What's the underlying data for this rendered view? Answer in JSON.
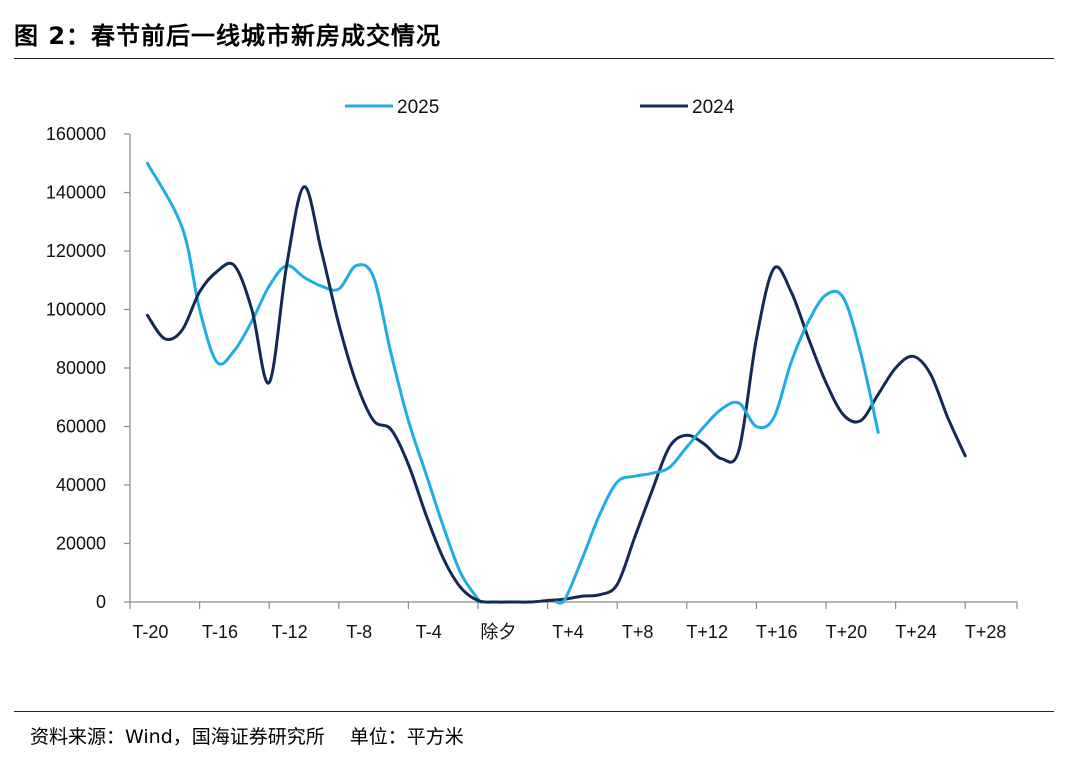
{
  "figure_title": "图 2：春节前后一线城市新房成交情况",
  "source_note": "资料来源：Wind，国海证券研究所　 单位：平方米",
  "chart_data": {
    "type": "line",
    "title": "",
    "xlabel": "",
    "ylabel": "",
    "ylim": [
      0,
      160000
    ],
    "yticks": [
      0,
      20000,
      40000,
      60000,
      80000,
      100000,
      120000,
      140000,
      160000
    ],
    "xlim": [
      -20,
      31
    ],
    "xticks": [
      {
        "x": -20,
        "label": "T-20"
      },
      {
        "x": -16,
        "label": "T-16"
      },
      {
        "x": -12,
        "label": "T-12"
      },
      {
        "x": -8,
        "label": "T-8"
      },
      {
        "x": -4,
        "label": "T-4"
      },
      {
        "x": 0,
        "label": "除夕"
      },
      {
        "x": 4,
        "label": "T+4"
      },
      {
        "x": 8,
        "label": "T+8"
      },
      {
        "x": 12,
        "label": "T+12"
      },
      {
        "x": 16,
        "label": "T+16"
      },
      {
        "x": 20,
        "label": "T+20"
      },
      {
        "x": 24,
        "label": "T+24"
      },
      {
        "x": 28,
        "label": "T+28"
      }
    ],
    "grid": false,
    "legend_position": "top",
    "series": [
      {
        "name": "2025",
        "color": "#1FADE4",
        "points": [
          [
            -20,
            150000
          ],
          [
            -18,
            128000
          ],
          [
            -17,
            100000
          ],
          [
            -16,
            82000
          ],
          [
            -15,
            86000
          ],
          [
            -14,
            96000
          ],
          [
            -13,
            108000
          ],
          [
            -12,
            115000
          ],
          [
            -11,
            111000
          ],
          [
            -10,
            108000
          ],
          [
            -9,
            107000
          ],
          [
            -8,
            115000
          ],
          [
            -7,
            111000
          ],
          [
            -6,
            85000
          ],
          [
            -5,
            62000
          ],
          [
            -4,
            44000
          ],
          [
            -3,
            26000
          ],
          [
            -2,
            10000
          ],
          [
            -1,
            1000
          ],
          [
            -0.8,
            0
          ]
        ]
      },
      {
        "name": "2024",
        "color": "#132A57",
        "points": [
          [
            -20,
            98000
          ],
          [
            -19,
            90000
          ],
          [
            -18,
            93000
          ],
          [
            -17,
            106000
          ],
          [
            -16,
            113000
          ],
          [
            -15,
            115000
          ],
          [
            -14,
            100000
          ],
          [
            -13,
            75000
          ],
          [
            -12,
            115000
          ],
          [
            -11,
            142000
          ],
          [
            -10,
            120000
          ],
          [
            -9,
            95000
          ],
          [
            -8,
            75000
          ],
          [
            -7,
            62000
          ],
          [
            -6,
            59000
          ],
          [
            -5,
            47000
          ],
          [
            -4,
            30000
          ],
          [
            -3,
            15000
          ],
          [
            -2,
            5000
          ],
          [
            -1,
            500
          ],
          [
            0,
            0
          ],
          [
            1,
            0
          ],
          [
            2,
            0
          ],
          [
            3,
            500
          ],
          [
            4,
            1000
          ],
          [
            5,
            2000
          ],
          [
            6,
            2500
          ],
          [
            7,
            6000
          ],
          [
            8,
            22000
          ],
          [
            9,
            38000
          ],
          [
            10,
            53000
          ],
          [
            11,
            57000
          ],
          [
            12,
            54000
          ],
          [
            13,
            49000
          ],
          [
            14,
            52000
          ],
          [
            15,
            90000
          ],
          [
            16,
            114000
          ],
          [
            17,
            106000
          ],
          [
            18,
            90000
          ],
          [
            19,
            75000
          ],
          [
            20,
            64000
          ],
          [
            21,
            62000
          ],
          [
            22,
            71000
          ],
          [
            23,
            80000
          ],
          [
            24,
            84000
          ],
          [
            25,
            78000
          ],
          [
            26,
            63000
          ],
          [
            27,
            50000
          ]
        ]
      },
      {
        "name": "2025",
        "color": "#1FADE4",
        "points": [
          [
            3.5,
            0
          ],
          [
            4,
            1000
          ],
          [
            5,
            15000
          ],
          [
            6,
            30000
          ],
          [
            7,
            41000
          ],
          [
            8,
            43000
          ],
          [
            9,
            44000
          ],
          [
            10,
            46000
          ],
          [
            11,
            53000
          ],
          [
            12,
            60000
          ],
          [
            13,
            66000
          ],
          [
            14,
            68000
          ],
          [
            15,
            60000
          ],
          [
            16,
            63000
          ],
          [
            17,
            82000
          ],
          [
            18,
            96000
          ],
          [
            19,
            105000
          ],
          [
            20,
            104000
          ],
          [
            21,
            85000
          ],
          [
            22,
            58000
          ]
        ]
      }
    ]
  }
}
